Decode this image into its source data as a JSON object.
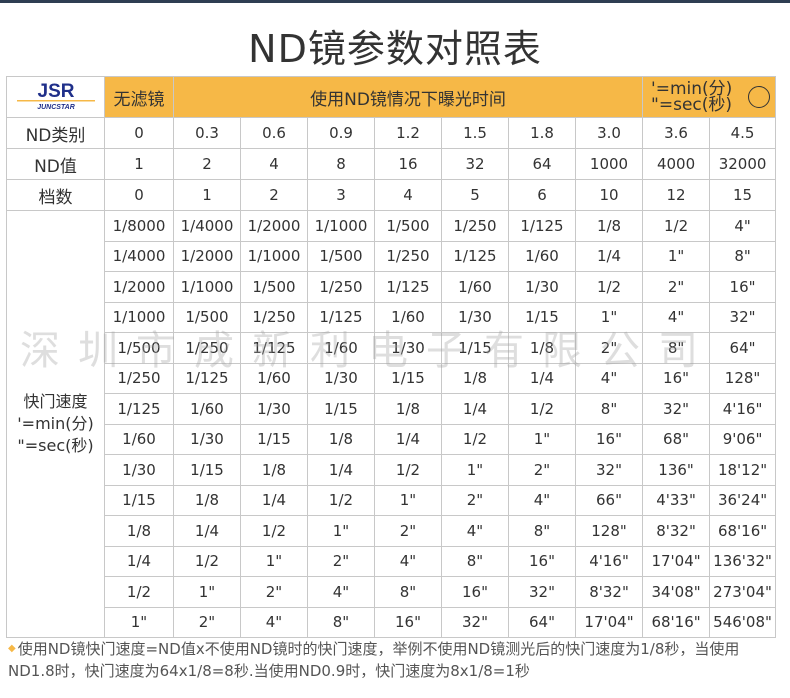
{
  "title": "ND镜参数对照表",
  "logo": {
    "main": "JSR",
    "sub": "JUNCSTAR"
  },
  "header": {
    "no_filter": "无滤镜",
    "with_nd": "使用ND镜情况下曝光时间",
    "note_min": "'=min(分)",
    "note_sec": "\"=sec(秒)"
  },
  "meta_rows": [
    {
      "label": "ND类别",
      "values": [
        "0",
        "0.3",
        "0.6",
        "0.9",
        "1.2",
        "1.5",
        "1.8",
        "3.0",
        "3.6",
        "4.5"
      ]
    },
    {
      "label": "ND值",
      "values": [
        "1",
        "2",
        "4",
        "8",
        "16",
        "32",
        "64",
        "1000",
        "4000",
        "32000"
      ]
    },
    {
      "label": "档数",
      "values": [
        "0",
        "1",
        "2",
        "3",
        "4",
        "5",
        "6",
        "10",
        "12",
        "15"
      ]
    }
  ],
  "shutter_label": [
    "快门速度",
    "'=min(分)",
    "\"=sec(秒)"
  ],
  "shutter_rows": [
    [
      "1/8000",
      "1/4000",
      "1/2000",
      "1/1000",
      "1/500",
      "1/250",
      "1/125",
      "1/8",
      "1/2",
      "4\""
    ],
    [
      "1/4000",
      "1/2000",
      "1/1000",
      "1/500",
      "1/250",
      "1/125",
      "1/60",
      "1/4",
      "1\"",
      "8\""
    ],
    [
      "1/2000",
      "1/1000",
      "1/500",
      "1/250",
      "1/125",
      "1/60",
      "1/30",
      "1/2",
      "2\"",
      "16\""
    ],
    [
      "1/1000",
      "1/500",
      "1/250",
      "1/125",
      "1/60",
      "1/30",
      "1/15",
      "1\"",
      "4\"",
      "32\""
    ],
    [
      "1/500",
      "1/250",
      "1/125",
      "1/60",
      "1/30",
      "1/15",
      "1/8",
      "2\"",
      "8\"",
      "64\""
    ],
    [
      "1/250",
      "1/125",
      "1/60",
      "1/30",
      "1/15",
      "1/8",
      "1/4",
      "4\"",
      "16\"",
      "128\""
    ],
    [
      "1/125",
      "1/60",
      "1/30",
      "1/15",
      "1/8",
      "1/4",
      "1/2",
      "8\"",
      "32\"",
      "4'16\""
    ],
    [
      "1/60",
      "1/30",
      "1/15",
      "1/8",
      "1/4",
      "1/2",
      "1\"",
      "16\"",
      "68\"",
      "9'06\""
    ],
    [
      "1/30",
      "1/15",
      "1/8",
      "1/4",
      "1/2",
      "1\"",
      "2\"",
      "32\"",
      "136\"",
      "18'12\""
    ],
    [
      "1/15",
      "1/8",
      "1/4",
      "1/2",
      "1\"",
      "2\"",
      "4\"",
      "66\"",
      "4'33\"",
      "36'24\""
    ],
    [
      "1/8",
      "1/4",
      "1/2",
      "1\"",
      "2\"",
      "4\"",
      "8\"",
      "128\"",
      "8'32\"",
      "68'16\""
    ],
    [
      "1/4",
      "1/2",
      "1\"",
      "2\"",
      "4\"",
      "8\"",
      "16\"",
      "4'16\"",
      "17'04\"",
      "136'32\""
    ],
    [
      "1/2",
      "1\"",
      "2\"",
      "4\"",
      "8\"",
      "16\"",
      "32\"",
      "8'32\"",
      "34'08\"",
      "273'04\""
    ],
    [
      "1\"",
      "2\"",
      "4\"",
      "8\"",
      "16\"",
      "32\"",
      "64\"",
      "17'04\"",
      "68'16\"",
      "546'08\""
    ]
  ],
  "watermark": "深圳市成新利电子有限公司",
  "footnote": "使用ND镜快门速度=ND值x不使用ND镜时的快门速度，举例不使用ND镜测光后的快门速度为1/8秒，当使用ND1.8时，快门速度为64x1/8=8秒.当使用ND0.9时，快门速度为8x1/8=1秒",
  "colors": {
    "header_bg": "#f6b847",
    "border": "#c8c8c8",
    "logo_blue": "#1f2f8a"
  }
}
